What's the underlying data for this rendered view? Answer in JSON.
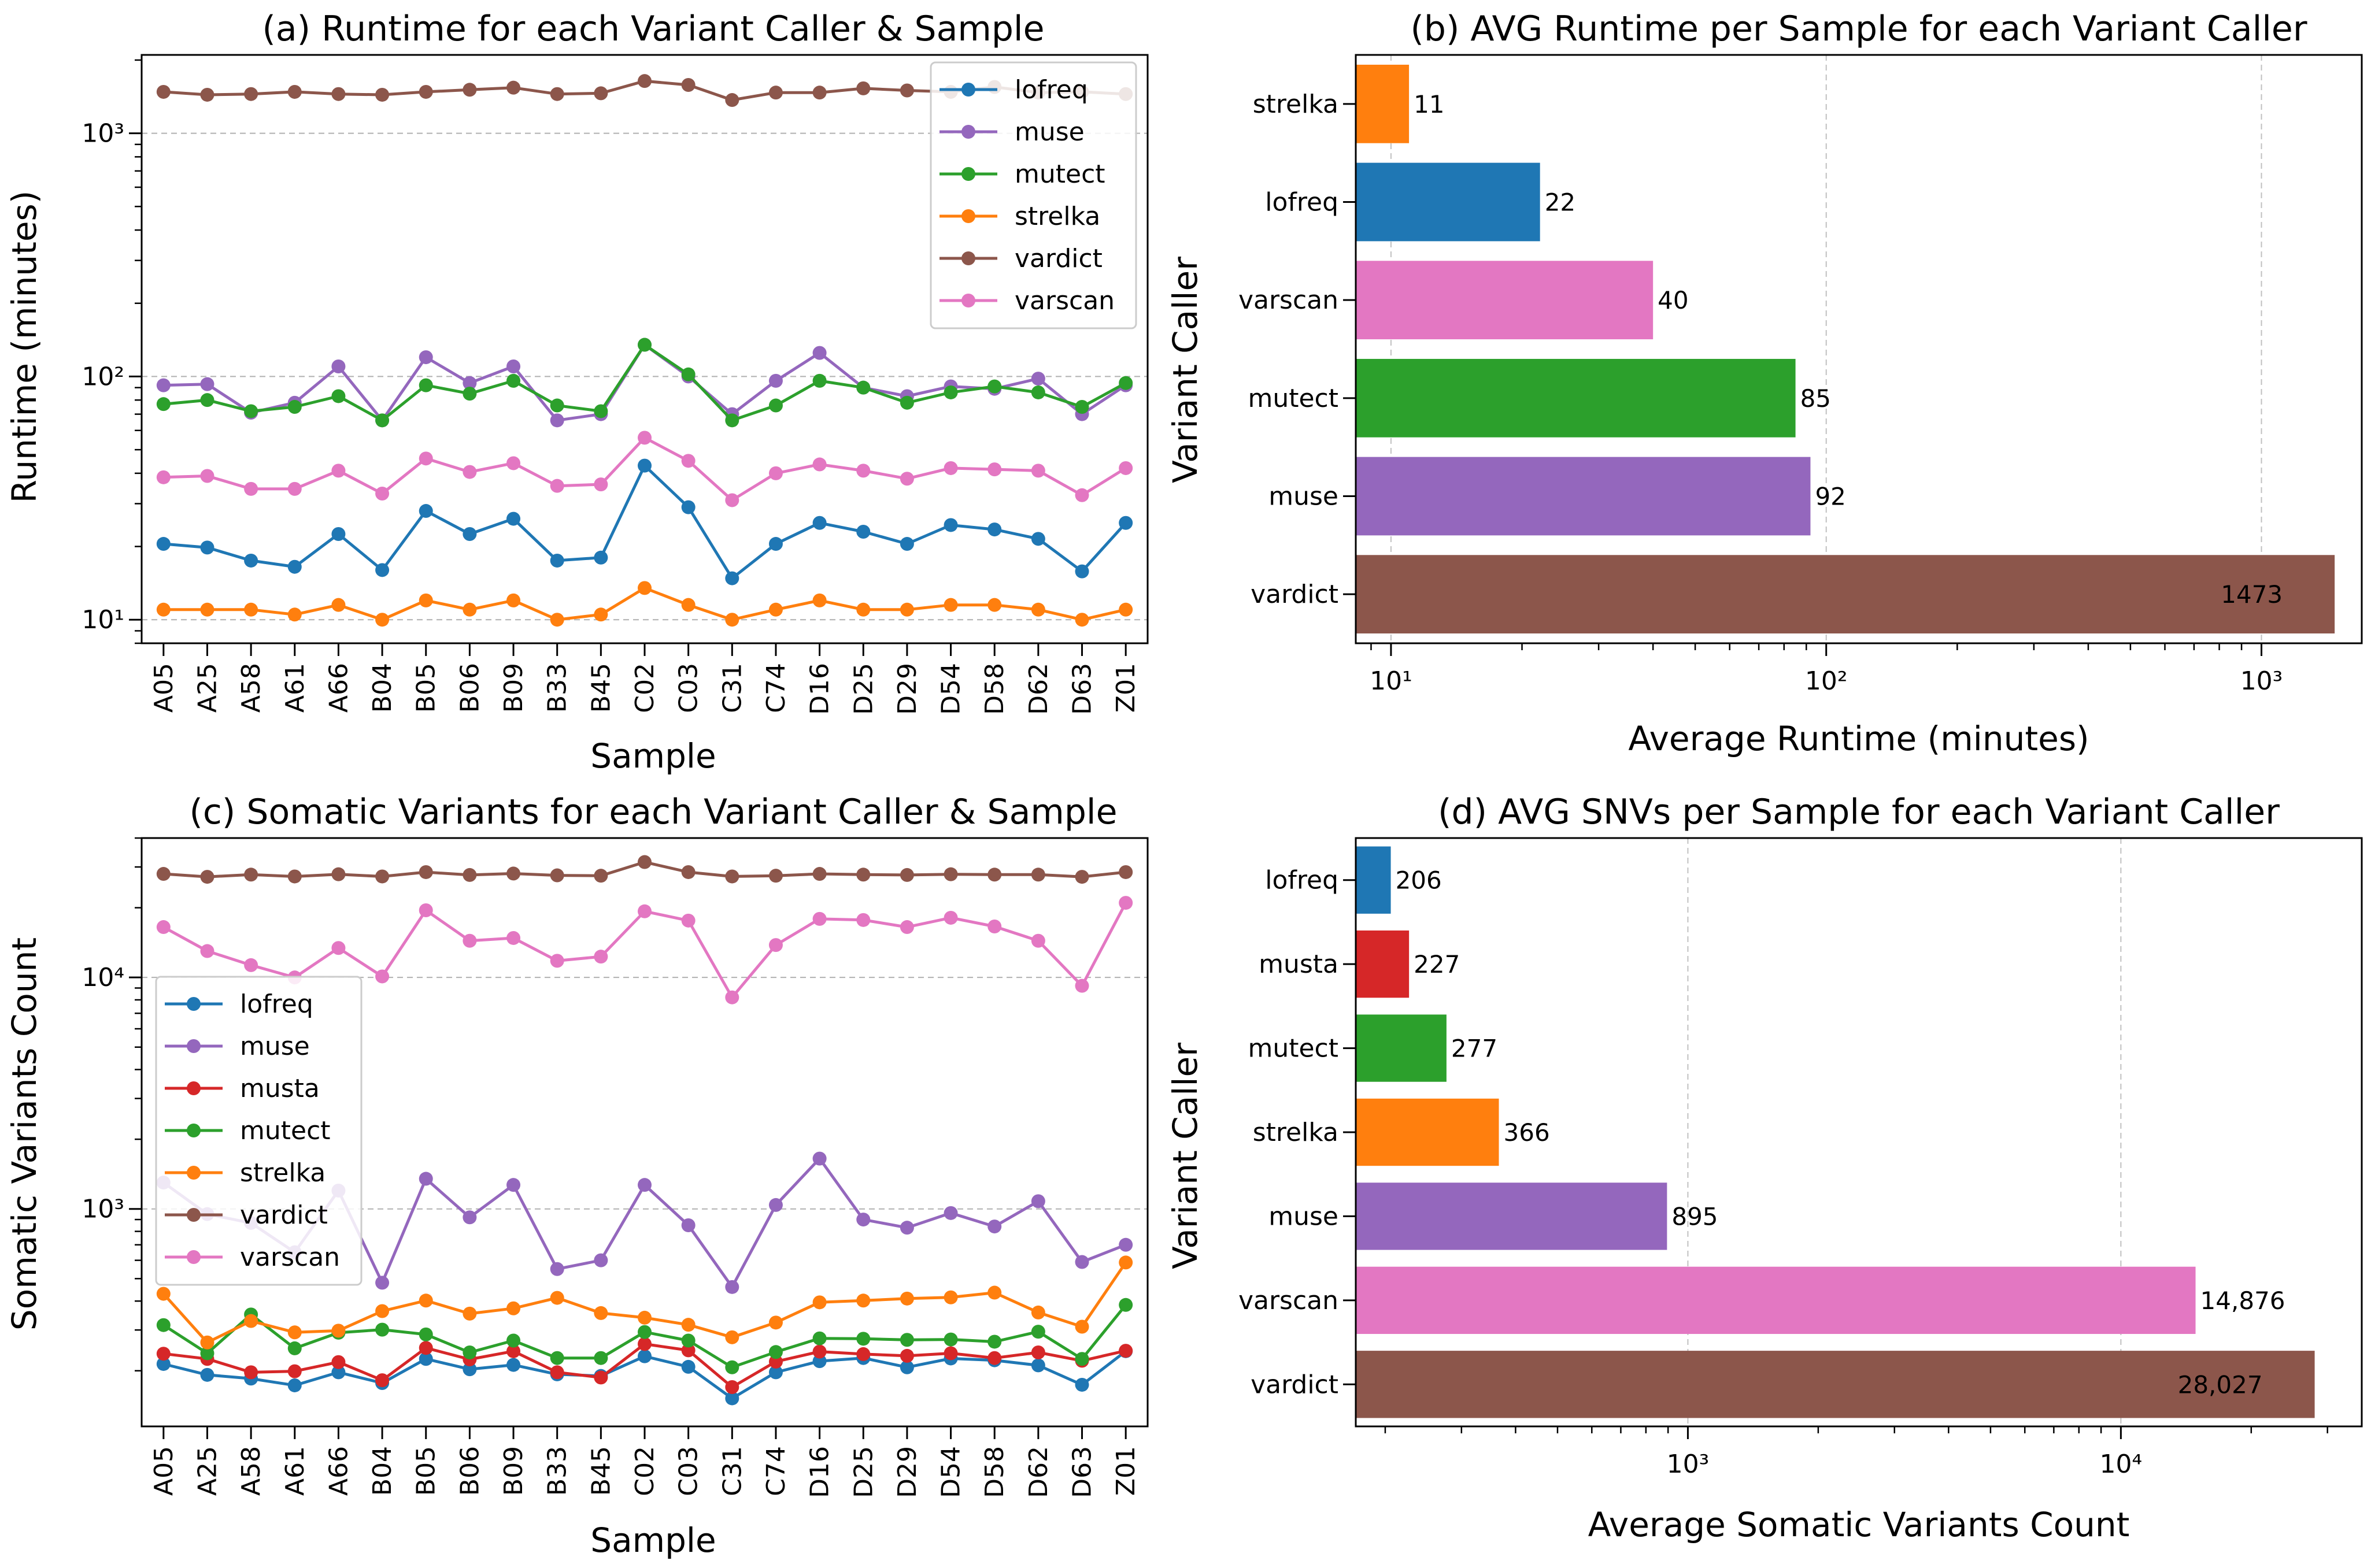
{
  "colors": {
    "lofreq": "#1f77b4",
    "muse": "#9467bd",
    "musta": "#d62728",
    "mutect": "#2ca02c",
    "strelka": "#ff7f0e",
    "vardict": "#8c564b",
    "varscan": "#e377c2"
  },
  "chart_data": [
    {
      "id": "a",
      "type": "line",
      "title": "(a) Runtime for each Variant Caller & Sample",
      "xlabel": "Sample",
      "ylabel": "Runtime (minutes)",
      "yscale": "log",
      "ylim": [
        8,
        2100
      ],
      "yticks": [
        {
          "value": 10,
          "label": "10¹"
        },
        {
          "value": 100,
          "label": "10²"
        },
        {
          "value": 1000,
          "label": "10³"
        }
      ],
      "grid": "y",
      "legend_position": "top-right",
      "categories": [
        "A05",
        "A25",
        "A58",
        "A61",
        "A66",
        "B04",
        "B05",
        "B06",
        "B09",
        "B33",
        "B45",
        "C02",
        "C03",
        "C31",
        "C74",
        "D16",
        "D25",
        "D29",
        "D54",
        "D58",
        "D62",
        "D63",
        "Z01"
      ],
      "series": [
        {
          "name": "lofreq",
          "values": [
            20.5,
            19.8,
            17.5,
            16.5,
            22.5,
            16,
            28,
            22.5,
            26,
            17.5,
            18,
            43,
            29,
            14.8,
            20.5,
            25,
            23,
            20.5,
            24.5,
            23.5,
            21.5,
            15.8,
            25
          ]
        },
        {
          "name": "muse",
          "values": [
            92,
            93,
            71,
            78,
            110,
            66,
            120,
            94,
            110,
            66,
            70,
            135,
            100,
            70,
            96,
            125,
            90,
            83,
            91,
            89,
            98,
            70,
            92
          ]
        },
        {
          "name": "mutect",
          "values": [
            77,
            80,
            72,
            75,
            83,
            66,
            92,
            85,
            96,
            76,
            72,
            135,
            102,
            66,
            76,
            96,
            90,
            78,
            86,
            91,
            86,
            75,
            94
          ]
        },
        {
          "name": "strelka",
          "values": [
            11,
            11,
            11,
            10.5,
            11.5,
            10,
            12,
            11,
            12,
            10,
            10.5,
            13.5,
            11.5,
            10,
            11,
            12,
            11,
            11,
            11.5,
            11.5,
            11,
            10,
            11
          ]
        },
        {
          "name": "vardict",
          "values": [
            1480,
            1440,
            1450,
            1480,
            1450,
            1440,
            1480,
            1510,
            1540,
            1450,
            1460,
            1640,
            1580,
            1370,
            1470,
            1470,
            1530,
            1500,
            1480,
            1550,
            1470,
            1480,
            1450
          ]
        },
        {
          "name": "varscan",
          "values": [
            38.5,
            39,
            34.5,
            34.5,
            41,
            33,
            46,
            40.5,
            44,
            35.5,
            36,
            56,
            45,
            31,
            40,
            43.5,
            41,
            38,
            42,
            41.5,
            41,
            32.5,
            42
          ]
        }
      ]
    },
    {
      "id": "b",
      "type": "bar",
      "orientation": "horizontal",
      "title": "(b) AVG Runtime per Sample for each Variant Caller",
      "xlabel": "Average Runtime (minutes)",
      "ylabel": "Variant Caller",
      "xscale": "log",
      "xlim": [
        8.3,
        1700
      ],
      "xticks": [
        {
          "value": 10,
          "label": "10¹"
        },
        {
          "value": 100,
          "label": "10²"
        },
        {
          "value": 1000,
          "label": "10³"
        }
      ],
      "grid": "x",
      "categories": [
        "strelka",
        "lofreq",
        "varscan",
        "mutect",
        "muse",
        "vardict"
      ],
      "values": [
        11,
        22,
        40,
        85,
        92,
        1473
      ],
      "value_labels": [
        "11",
        "22",
        "40",
        "85",
        "92",
        "1473"
      ]
    },
    {
      "id": "c",
      "type": "line",
      "title": "(c) Somatic Variants for each Variant Caller & Sample",
      "xlabel": "Sample",
      "ylabel": "Somatic Variants Count",
      "yscale": "log",
      "ylim": [
        115,
        40000
      ],
      "yticks": [
        {
          "value": 1000,
          "label": "10³"
        },
        {
          "value": 10000,
          "label": "10⁴"
        }
      ],
      "grid": "y",
      "legend_position": "center-left",
      "categories": [
        "A05",
        "A25",
        "A58",
        "A61",
        "A66",
        "B04",
        "B05",
        "B06",
        "B09",
        "B33",
        "B45",
        "C02",
        "C03",
        "C31",
        "C74",
        "D16",
        "D25",
        "D29",
        "D54",
        "D58",
        "D62",
        "D63",
        "Z01"
      ],
      "series": [
        {
          "name": "lofreq",
          "values": [
            214,
            192,
            185,
            173,
            197,
            177,
            225,
            203,
            212,
            193,
            190,
            231,
            208,
            152,
            197,
            220,
            227,
            207,
            226,
            222,
            211,
            174,
            243
          ]
        },
        {
          "name": "muse",
          "values": [
            1300,
            950,
            870,
            650,
            1200,
            480,
            1350,
            920,
            1270,
            550,
            600,
            1270,
            850,
            460,
            1040,
            1650,
            900,
            830,
            960,
            840,
            1080,
            590,
            700
          ]
        },
        {
          "name": "musta",
          "values": [
            237,
            225,
            197,
            199,
            218,
            182,
            251,
            224,
            243,
            197,
            187,
            261,
            245,
            170,
            219,
            242,
            236,
            232,
            238,
            227,
            240,
            221,
            244
          ]
        },
        {
          "name": "mutect",
          "values": [
            315,
            238,
            350,
            250,
            292,
            301,
            287,
            240,
            270,
            227,
            227,
            294,
            270,
            207,
            241,
            276,
            275,
            272,
            273,
            267,
            295,
            225,
            385
          ]
        },
        {
          "name": "strelka",
          "values": [
            430,
            265,
            328,
            293,
            298,
            362,
            402,
            353,
            372,
            413,
            355,
            339,
            316,
            279,
            323,
            395,
            402,
            410,
            415,
            435,
            357,
            310,
            587
          ]
        },
        {
          "name": "vardict",
          "values": [
            28000,
            27200,
            27800,
            27300,
            27900,
            27300,
            28500,
            27700,
            28100,
            27600,
            27500,
            31500,
            28500,
            27300,
            27500,
            28000,
            27800,
            27700,
            27900,
            27800,
            27800,
            27200,
            28500
          ]
        },
        {
          "name": "varscan",
          "values": [
            16500,
            13000,
            11300,
            10000,
            13400,
            10100,
            19500,
            14400,
            14800,
            11800,
            12300,
            19300,
            17600,
            8200,
            13800,
            17900,
            17700,
            16500,
            18100,
            16600,
            14400,
            9200,
            21000
          ]
        }
      ]
    },
    {
      "id": "d",
      "type": "bar",
      "orientation": "horizontal",
      "title": "(d) AVG SNVs per Sample for each Variant Caller",
      "xlabel": "Average Somatic Variants Count",
      "ylabel": "Variant Caller",
      "xscale": "log",
      "xlim": [
        171,
        36000
      ],
      "xticks": [
        {
          "value": 1000,
          "label": "10³"
        },
        {
          "value": 10000,
          "label": "10⁴"
        }
      ],
      "grid": "x",
      "categories": [
        "lofreq",
        "musta",
        "mutect",
        "strelka",
        "muse",
        "varscan",
        "vardict"
      ],
      "values": [
        206,
        227,
        277,
        366,
        895,
        14876,
        28027
      ],
      "value_labels": [
        "206",
        "227",
        "277",
        "366",
        "895",
        "14,876",
        "28,027"
      ]
    }
  ]
}
